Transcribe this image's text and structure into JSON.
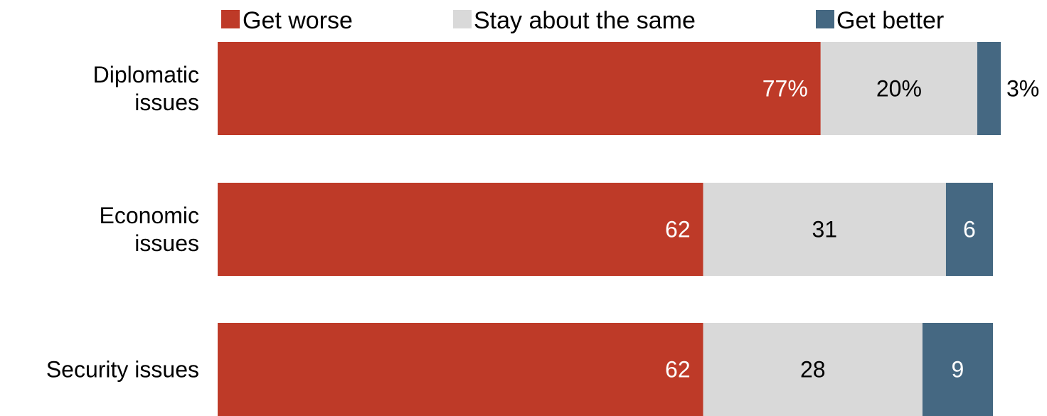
{
  "chart_data": {
    "type": "bar",
    "orientation": "horizontal",
    "stacked": true,
    "categories": [
      [
        "Diplomatic",
        "issues"
      ],
      [
        "Economic",
        "issues"
      ],
      [
        "Security issues"
      ]
    ],
    "series": [
      {
        "name": "Get worse",
        "color": "#be3a28",
        "label_color": "#ffffff",
        "values": [
          77,
          62,
          62
        ],
        "labels": [
          "77%",
          "62",
          "62"
        ]
      },
      {
        "name": "Stay about the same",
        "color": "#d9d9d9",
        "label_color": "#000000",
        "values": [
          20,
          31,
          28
        ],
        "labels": [
          "20%",
          "31",
          "28"
        ]
      },
      {
        "name": "Get better",
        "color": "#456882",
        "label_color": "#ffffff",
        "values": [
          3,
          6,
          9
        ],
        "labels": [
          "3%",
          "6",
          "9"
        ]
      }
    ],
    "xlim": [
      0,
      100
    ],
    "grid": false,
    "legend": "top"
  }
}
